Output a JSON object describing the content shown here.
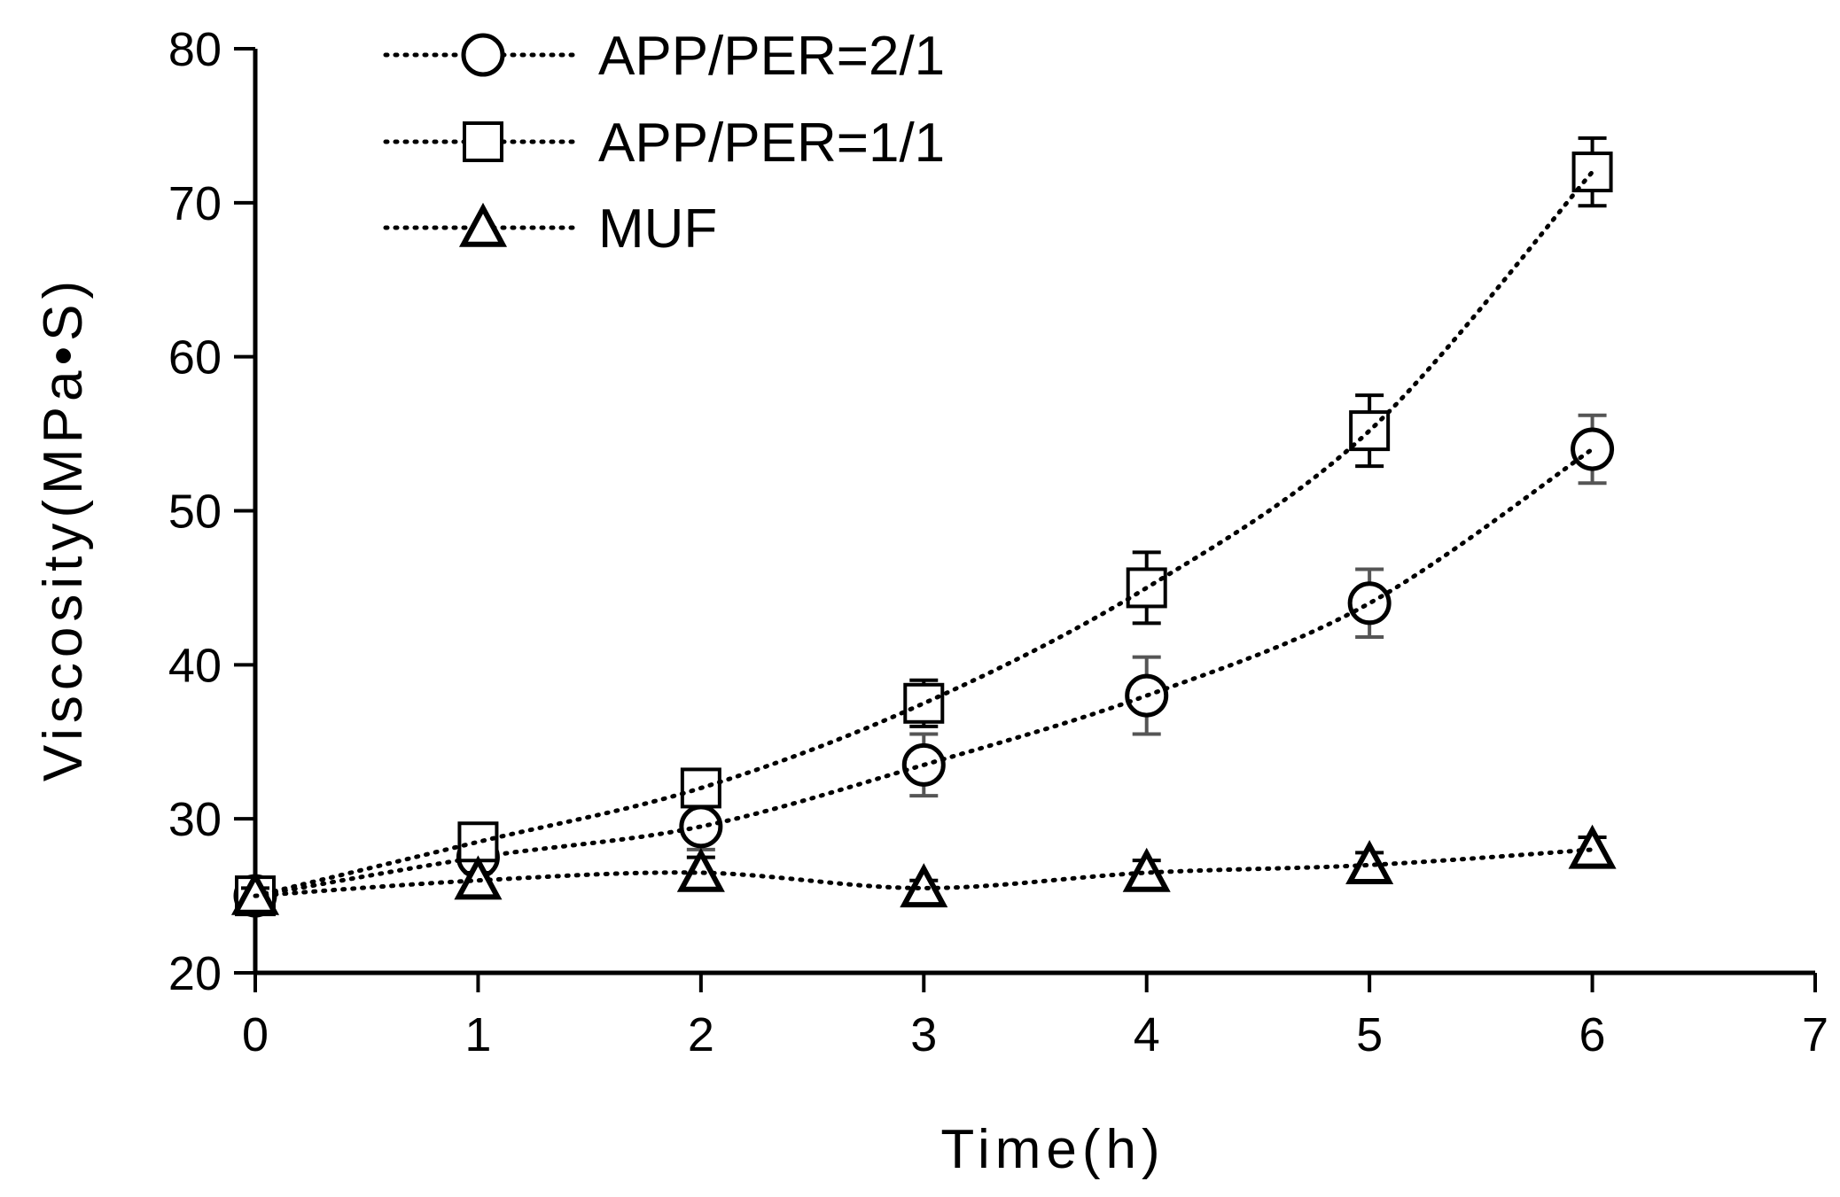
{
  "chart_data": {
    "type": "line",
    "xlabel": "Time(h)",
    "ylabel": "Viscosity(MPa•S)",
    "xlim": [
      0,
      7
    ],
    "ylim": [
      20,
      80
    ],
    "xticks": [
      "0",
      "1",
      "2",
      "3",
      "4",
      "5",
      "6",
      "7"
    ],
    "yticks": [
      "20",
      "30",
      "40",
      "50",
      "60",
      "70",
      "80"
    ],
    "grid": false,
    "legend_position": "top-left",
    "x": [
      0,
      1,
      2,
      3,
      4,
      5,
      6
    ],
    "series": [
      {
        "name": "APP/PER=2/1",
        "marker": "circle",
        "values": [
          25,
          27.5,
          29.5,
          33.5,
          38,
          44,
          54
        ],
        "error": [
          0.5,
          0.5,
          1.5,
          2,
          2.5,
          2.2,
          2.2
        ]
      },
      {
        "name": "APP/PER=1/1",
        "marker": "square",
        "values": [
          25,
          28.5,
          32,
          37.5,
          45,
          55.2,
          72
        ],
        "error": [
          0.5,
          0.5,
          1.2,
          1.5,
          2.3,
          2.3,
          2.2
        ]
      },
      {
        "name": "MUF",
        "marker": "triangle",
        "values": [
          25,
          26,
          26.5,
          25.5,
          26.5,
          27,
          28
        ],
        "error": [
          0.5,
          0.5,
          1,
          0.5,
          0.8,
          0.8,
          0.8
        ]
      }
    ]
  }
}
